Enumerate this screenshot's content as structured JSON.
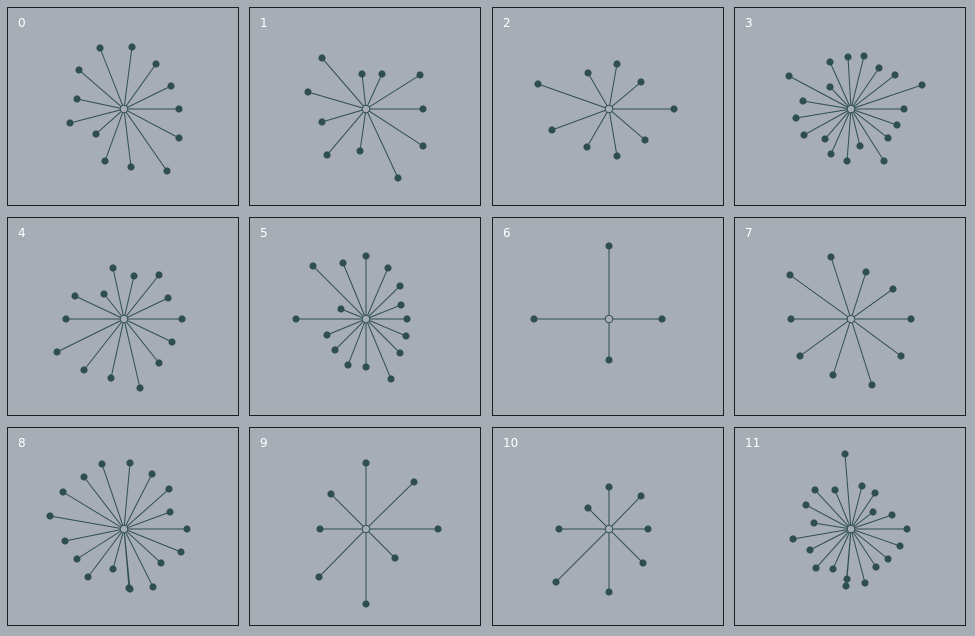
{
  "colors": {
    "background": "#a6adb4",
    "panel_border": "#1f1f1f",
    "edge": "#2f4f4f",
    "node": "#2f4f4f",
    "center_fill": "#a6adb4",
    "label": "#ffffff"
  },
  "graphs": [
    {
      "label": "0",
      "leaves": 12
    },
    {
      "label": "1",
      "leaves": 12
    },
    {
      "label": "2",
      "leaves": 8
    },
    {
      "label": "3",
      "leaves": 22
    },
    {
      "label": "4",
      "leaves": 15
    },
    {
      "label": "5",
      "leaves": 18
    },
    {
      "label": "6",
      "leaves": 4
    },
    {
      "label": "7",
      "leaves": 9
    },
    {
      "label": "8",
      "leaves": 20
    },
    {
      "label": "9",
      "leaves": 8
    },
    {
      "label": "10",
      "leaves": 8
    },
    {
      "label": "11",
      "leaves": 21
    }
  ]
}
